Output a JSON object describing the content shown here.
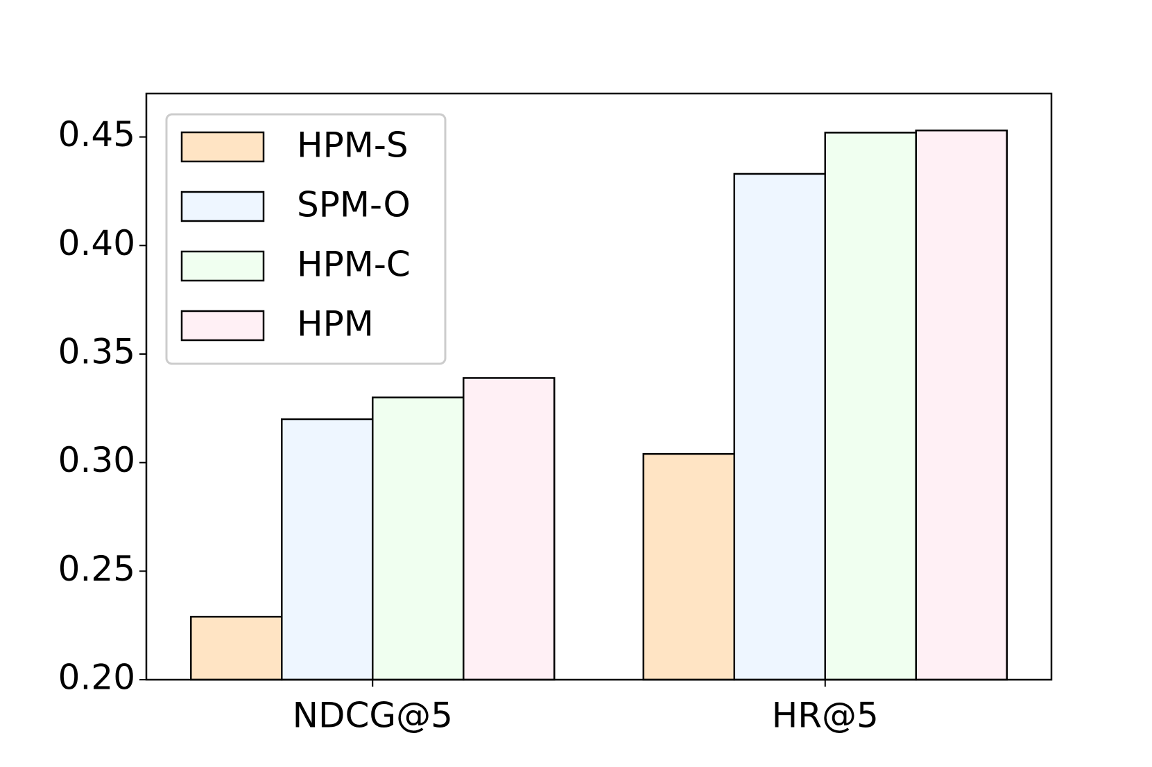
{
  "chart_data": {
    "type": "bar",
    "categories": [
      "NDCG@5",
      "HR@5"
    ],
    "series": [
      {
        "name": "HPM-S",
        "color": "#ffe4c4",
        "values": [
          0.229,
          0.304
        ]
      },
      {
        "name": "SPM-O",
        "color": "#eef6ff",
        "values": [
          0.32,
          0.433
        ]
      },
      {
        "name": "HPM-C",
        "color": "#f0fff0",
        "values": [
          0.33,
          0.452
        ]
      },
      {
        "name": "HPM",
        "color": "#fff0f5",
        "values": [
          0.339,
          0.453
        ]
      }
    ],
    "ylim": [
      0.2,
      0.47
    ],
    "yticks": [
      {
        "value": 0.2,
        "label": "0.20"
      },
      {
        "value": 0.25,
        "label": "0.25"
      },
      {
        "value": 0.3,
        "label": "0.30"
      },
      {
        "value": 0.35,
        "label": "0.35"
      },
      {
        "value": 0.4,
        "label": "0.40"
      },
      {
        "value": 0.45,
        "label": "0.45"
      }
    ],
    "legend": "upper left"
  }
}
